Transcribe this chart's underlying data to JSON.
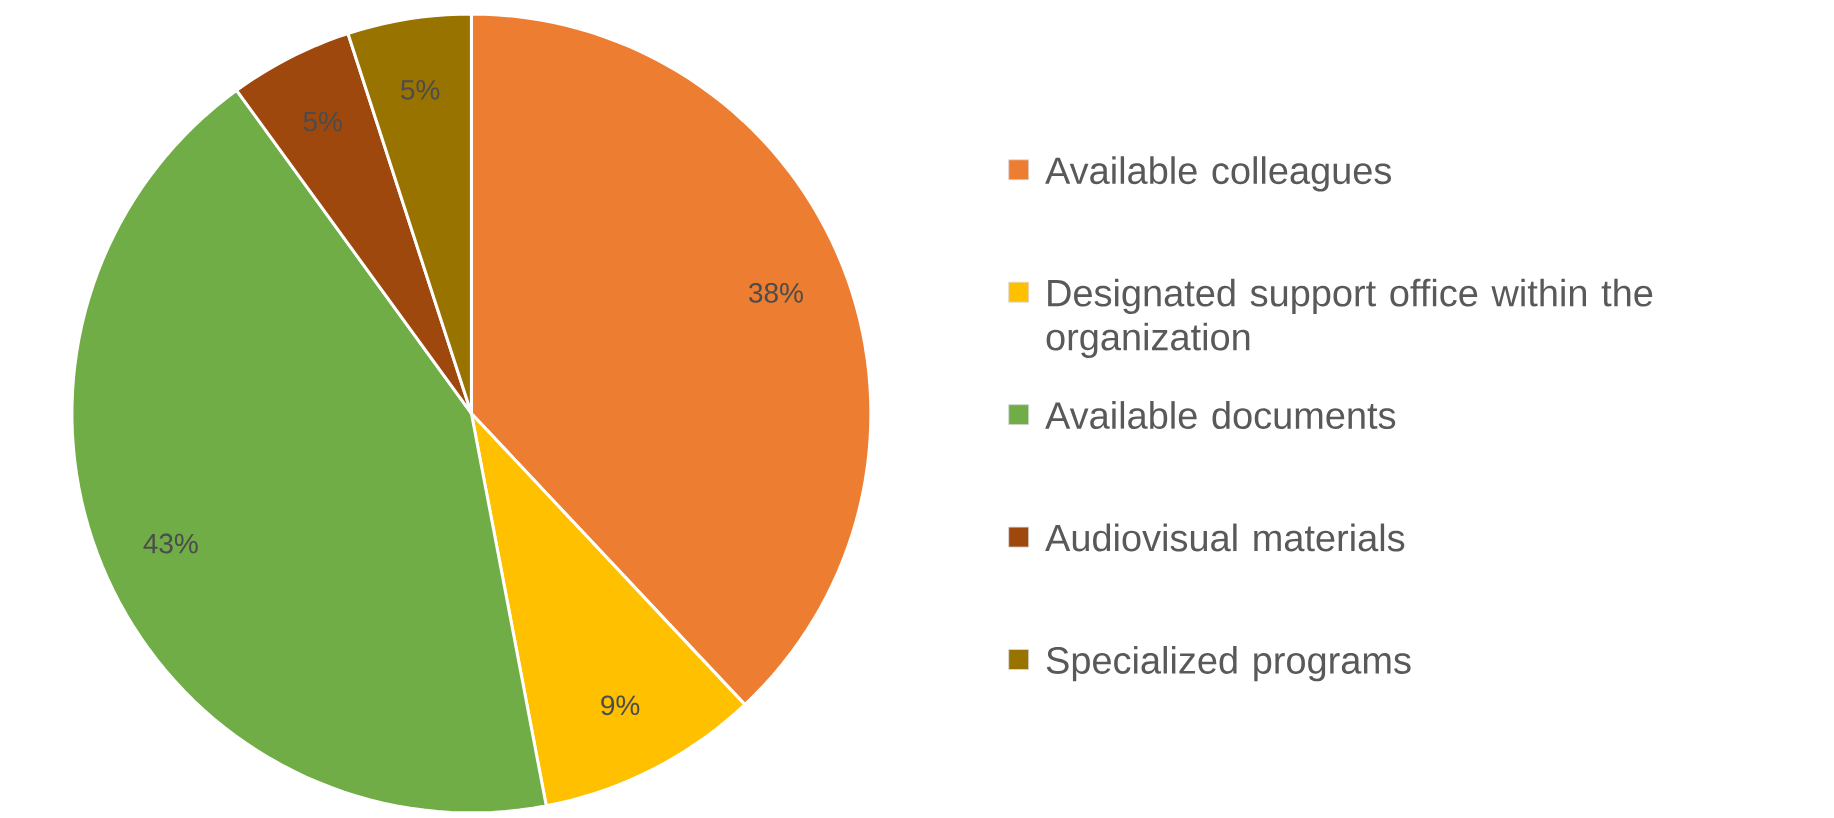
{
  "chart_data": {
    "type": "pie",
    "categories": [
      "Available colleagues",
      "Designated support office within the organization",
      "Available documents",
      "Audiovisual materials",
      "Specialized programs"
    ],
    "values": [
      38,
      9,
      43,
      5,
      5
    ],
    "value_labels": [
      "38%",
      "9%",
      "43%",
      "5%",
      "5%"
    ],
    "colors": [
      "#ed7d31",
      "#ffc000",
      "#70ad47",
      "#9e480e",
      "#997300"
    ],
    "legend": "right"
  }
}
